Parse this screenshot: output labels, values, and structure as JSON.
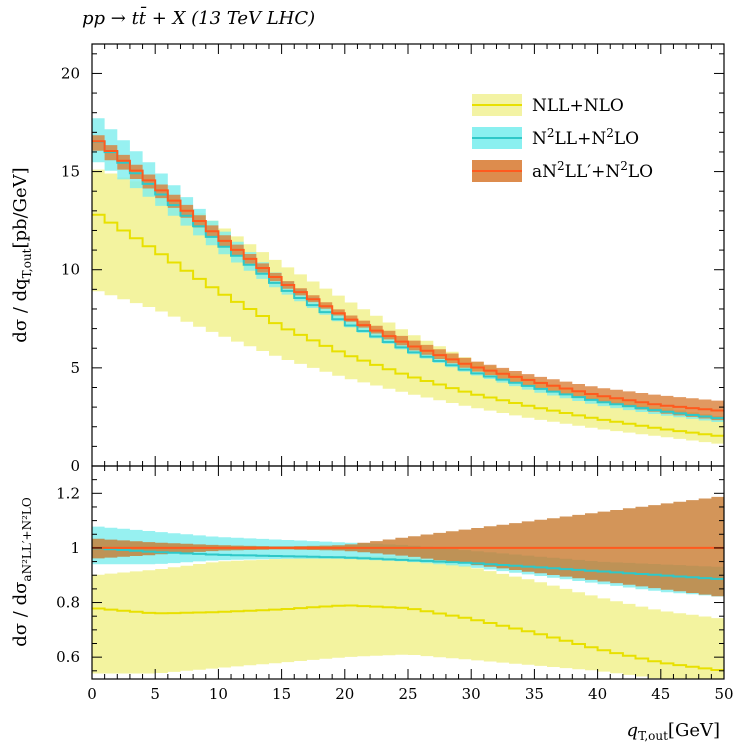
{
  "chart_data": {
    "type": "line",
    "title": "pp → tt̄ + X (13 TeV LHC)",
    "xlabel": "q_T,out [GeV]",
    "xlabel_main": "q",
    "xlabel_sub": "T,out",
    "xlabel_unit": "[GeV]",
    "xlim": [
      0,
      50
    ],
    "x_ticks": [
      "0",
      "5",
      "10",
      "15",
      "20",
      "25",
      "30",
      "35",
      "40",
      "45",
      "50"
    ],
    "main_panel": {
      "ylabel": "dσ / dq_T,out [pb/GeV]",
      "ylabel_prefix": "dσ / dq",
      "ylabel_sub": "T,out",
      "ylabel_unit": "[pb/GeV]",
      "ylim": [
        0,
        21.5
      ],
      "y_ticks": [
        "0",
        "5",
        "10",
        "15",
        "20"
      ],
      "x": [
        0,
        5,
        10,
        15,
        20,
        25,
        30,
        35,
        40,
        45,
        50
      ],
      "series": [
        {
          "name": "NLL+NLO",
          "color": "#e8e000",
          "fill": "#f2f29a",
          "central": [
            13.0,
            11.0,
            8.9,
            7.1,
            5.7,
            4.6,
            3.7,
            3.0,
            2.4,
            1.9,
            1.5
          ],
          "lower": [
            9.0,
            8.0,
            6.7,
            5.5,
            4.5,
            3.7,
            3.0,
            2.4,
            1.9,
            1.5,
            1.1
          ],
          "upper": [
            15.2,
            14.2,
            12.3,
            10.3,
            8.5,
            6.8,
            5.4,
            4.4,
            3.6,
            3.0,
            2.5
          ]
        },
        {
          "name": "N²LL+N²LO",
          "color": "#2ec8c8",
          "fill": "#7deeee",
          "central": [
            16.8,
            14.1,
            11.4,
            9.1,
            7.3,
            5.9,
            4.8,
            4.0,
            3.3,
            2.8,
            2.4
          ],
          "lower": [
            15.7,
            13.5,
            11.0,
            8.9,
            7.2,
            5.8,
            4.7,
            3.8,
            3.1,
            2.6,
            2.2
          ],
          "upper": [
            18.0,
            15.2,
            12.2,
            9.6,
            7.6,
            6.1,
            4.9,
            4.0,
            3.4,
            2.9,
            2.5
          ]
        },
        {
          "name": "aN²LL′+N²LO",
          "color": "#ff5a1e",
          "fill": "#d9803a",
          "central": [
            16.8,
            14.3,
            11.7,
            9.4,
            7.6,
            6.2,
            5.1,
            4.3,
            3.6,
            3.1,
            2.8
          ],
          "lower": [
            16.3,
            13.9,
            11.4,
            9.2,
            7.5,
            6.0,
            4.9,
            4.0,
            3.3,
            2.7,
            2.3
          ],
          "upper": [
            17.1,
            14.6,
            12.0,
            9.6,
            7.8,
            6.5,
            5.4,
            4.6,
            4.0,
            3.6,
            3.3
          ]
        }
      ]
    },
    "ratio_panel": {
      "ylabel": "dσ / dσ_aN²LL′+N²LO",
      "ylabel_prefix": "dσ / dσ",
      "ylabel_sub": "aN²LL′+N²LO",
      "ylim": [
        0.52,
        1.3
      ],
      "y_ticks": [
        "0.6",
        "0.8",
        "1",
        "1.2"
      ],
      "x": [
        0,
        5,
        10,
        15,
        20,
        25,
        30,
        35,
        40,
        45,
        50
      ],
      "series": [
        {
          "name": "NLL+NLO",
          "color": "#e8e000",
          "fill": "#f2f29a",
          "central": [
            0.78,
            0.76,
            0.765,
            0.775,
            0.79,
            0.78,
            0.74,
            0.69,
            0.63,
            0.58,
            0.55
          ],
          "lower": [
            0.54,
            0.54,
            0.56,
            0.58,
            0.6,
            0.61,
            0.59,
            0.57,
            0.55,
            0.52,
            0.52
          ],
          "upper": [
            0.9,
            0.92,
            0.95,
            0.96,
            0.97,
            0.97,
            0.93,
            0.88,
            0.82,
            0.77,
            0.74
          ]
        },
        {
          "name": "N²LL+N²LO",
          "color": "#2ec8c8",
          "fill": "#7deeee",
          "central": [
            1.0,
            0.985,
            0.975,
            0.97,
            0.965,
            0.955,
            0.945,
            0.93,
            0.915,
            0.9,
            0.885
          ],
          "lower": [
            0.94,
            0.94,
            0.955,
            0.96,
            0.96,
            0.95,
            0.93,
            0.9,
            0.87,
            0.84,
            0.82
          ],
          "upper": [
            1.08,
            1.06,
            1.04,
            1.03,
            1.02,
            1.01,
            0.99,
            0.97,
            0.95,
            0.94,
            0.93
          ]
        },
        {
          "name": "aN²LL′+N²LO",
          "color": "#ff5a1e",
          "fill": "#c87a30",
          "central": [
            1.0,
            1.0,
            1.0,
            1.0,
            1.0,
            1.0,
            1.0,
            1.0,
            1.0,
            1.0,
            1.0
          ],
          "lower": [
            0.96,
            0.975,
            0.99,
            0.995,
            0.99,
            0.97,
            0.94,
            0.91,
            0.88,
            0.85,
            0.82
          ],
          "upper": [
            1.035,
            1.02,
            1.01,
            1.005,
            1.01,
            1.04,
            1.07,
            1.1,
            1.13,
            1.16,
            1.19
          ]
        }
      ]
    },
    "legend": {
      "placement": "top-right",
      "entries": [
        {
          "prefix": "NLL+NLO",
          "sup1": "",
          "mid": "",
          "sup2": "",
          "suffix": ""
        },
        {
          "prefix": "N",
          "sup1": "2",
          "mid": "LL+N",
          "sup2": "2",
          "suffix": "LO"
        },
        {
          "prefix": "aN",
          "sup1": "2",
          "mid": "LL′+N",
          "sup2": "2",
          "suffix": "LO"
        }
      ]
    }
  }
}
